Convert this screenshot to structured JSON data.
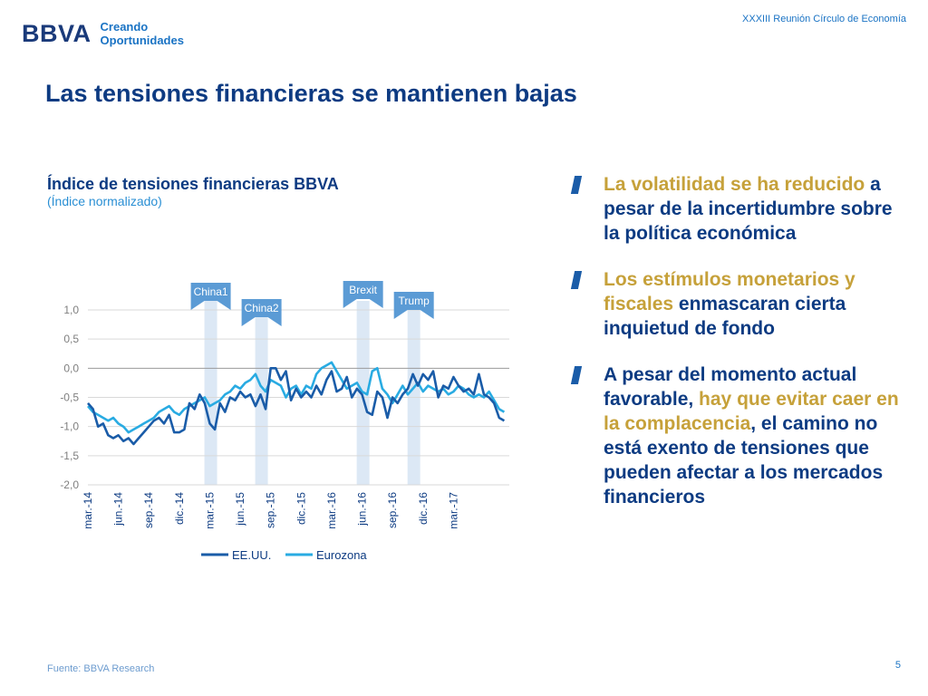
{
  "header": {
    "logo_text": "BBVA",
    "tagline_1": "Creando",
    "tagline_2": "Oportunidades",
    "event": "XXXIII Reunión Círculo de Economía"
  },
  "title": "Las tensiones financieras se mantienen bajas",
  "colors": {
    "usa": "#1a5ca8",
    "euro": "#29abe2",
    "event_band": "#dce8f5",
    "event_label": "#5b9bd5",
    "gold": "#c6a13a",
    "navy": "#0d3b82"
  },
  "chart_data": {
    "type": "line",
    "title": "Índice de tensiones financieras BBVA",
    "subtitle": "(Índice normalizado)",
    "x_tick_labels": [
      "mar.-14",
      "jun.-14",
      "sep.-14",
      "dic.-14",
      "mar.-15",
      "jun.-15",
      "sep.-15",
      "dic.-15",
      "mar.-16",
      "jun.-16",
      "sep.-16",
      "dic.-16",
      "mar.-17"
    ],
    "y_tick_labels": [
      "1,0",
      "0,5",
      "0,0",
      "-0,5",
      "-1,0",
      "-1,5",
      "-2,0"
    ],
    "ylim": [
      -2.0,
      1.0
    ],
    "xlim": [
      0,
      41.5
    ],
    "legend_position": "bottom",
    "events": [
      {
        "label": "China1",
        "x": 12.1
      },
      {
        "label": "China2",
        "x": 17.1
      },
      {
        "label": "Brexit",
        "x": 27.1
      },
      {
        "label": "Trump",
        "x": 32.1
      }
    ],
    "series": [
      {
        "name": "EE.UU.",
        "x": [
          0,
          0.5,
          1,
          1.5,
          2,
          2.5,
          3,
          3.5,
          4,
          4.5,
          5,
          5.5,
          6,
          6.5,
          7,
          7.5,
          8,
          8.5,
          9,
          9.5,
          10,
          10.5,
          11,
          11.5,
          12,
          12.5,
          13,
          13.5,
          14,
          14.5,
          15,
          15.5,
          16,
          16.5,
          17,
          17.5,
          18,
          18.5,
          19,
          19.5,
          20,
          20.5,
          21,
          21.5,
          22,
          22.5,
          23,
          23.5,
          24,
          24.5,
          25,
          25.5,
          26,
          26.5,
          27,
          27.5,
          28,
          28.5,
          29,
          29.5,
          30,
          30.5,
          31,
          31.5,
          32,
          32.5,
          33,
          33.5,
          34,
          34.5,
          35,
          35.5,
          36,
          36.5,
          37,
          37.5,
          38,
          38.5,
          39,
          39.5,
          40,
          40.5,
          41
        ],
        "values": [
          -0.6,
          -0.7,
          -1.0,
          -0.95,
          -1.15,
          -1.2,
          -1.15,
          -1.25,
          -1.2,
          -1.3,
          -1.2,
          -1.1,
          -1.0,
          -0.9,
          -0.85,
          -0.95,
          -0.8,
          -1.1,
          -1.1,
          -1.05,
          -0.6,
          -0.7,
          -0.45,
          -0.6,
          -0.95,
          -1.05,
          -0.6,
          -0.75,
          -0.5,
          -0.55,
          -0.4,
          -0.5,
          -0.45,
          -0.65,
          -0.45,
          -0.7,
          0.0,
          0.0,
          -0.2,
          -0.05,
          -0.55,
          -0.35,
          -0.5,
          -0.4,
          -0.5,
          -0.3,
          -0.45,
          -0.2,
          -0.05,
          -0.4,
          -0.35,
          -0.15,
          -0.5,
          -0.35,
          -0.45,
          -0.75,
          -0.8,
          -0.4,
          -0.5,
          -0.85,
          -0.5,
          -0.6,
          -0.45,
          -0.35,
          -0.1,
          -0.3,
          -0.1,
          -0.2,
          -0.05,
          -0.5,
          -0.3,
          -0.35,
          -0.15,
          -0.3,
          -0.4,
          -0.35,
          -0.45,
          -0.1,
          -0.45,
          -0.5,
          -0.6,
          -0.85,
          -0.9
        ]
      },
      {
        "name": "Eurozona",
        "x": [
          0,
          0.5,
          1,
          1.5,
          2,
          2.5,
          3,
          3.5,
          4,
          4.5,
          5,
          5.5,
          6,
          6.5,
          7,
          7.5,
          8,
          8.5,
          9,
          9.5,
          10,
          10.5,
          11,
          11.5,
          12,
          12.5,
          13,
          13.5,
          14,
          14.5,
          15,
          15.5,
          16,
          16.5,
          17,
          17.5,
          18,
          18.5,
          19,
          19.5,
          20,
          20.5,
          21,
          21.5,
          22,
          22.5,
          23,
          23.5,
          24,
          24.5,
          25,
          25.5,
          26,
          26.5,
          27,
          27.5,
          28,
          28.5,
          29,
          29.5,
          30,
          30.5,
          31,
          31.5,
          32,
          32.5,
          33,
          33.5,
          34,
          34.5,
          35,
          35.5,
          36,
          36.5,
          37,
          37.5,
          38,
          38.5,
          39,
          39.5,
          40,
          40.5,
          41
        ],
        "values": [
          -0.65,
          -0.75,
          -0.8,
          -0.85,
          -0.9,
          -0.85,
          -0.95,
          -1.0,
          -1.1,
          -1.05,
          -1.0,
          -0.95,
          -0.9,
          -0.85,
          -0.75,
          -0.7,
          -0.65,
          -0.75,
          -0.8,
          -0.7,
          -0.65,
          -0.6,
          -0.55,
          -0.5,
          -0.65,
          -0.6,
          -0.55,
          -0.45,
          -0.4,
          -0.3,
          -0.35,
          -0.25,
          -0.2,
          -0.1,
          -0.3,
          -0.4,
          -0.2,
          -0.25,
          -0.3,
          -0.5,
          -0.35,
          -0.3,
          -0.45,
          -0.3,
          -0.35,
          -0.1,
          0.0,
          0.05,
          0.1,
          -0.05,
          -0.2,
          -0.35,
          -0.3,
          -0.25,
          -0.4,
          -0.45,
          -0.05,
          0.0,
          -0.35,
          -0.45,
          -0.6,
          -0.45,
          -0.3,
          -0.45,
          -0.35,
          -0.25,
          -0.4,
          -0.3,
          -0.35,
          -0.4,
          -0.35,
          -0.45,
          -0.4,
          -0.3,
          -0.35,
          -0.45,
          -0.5,
          -0.45,
          -0.5,
          -0.4,
          -0.55,
          -0.7,
          -0.75
        ]
      }
    ]
  },
  "bullets": [
    {
      "parts": [
        {
          "text": "La volatilidad se ha reducido",
          "hl": true
        },
        {
          "text": " a pesar de la incertidumbre sobre la política económica",
          "hl": false
        }
      ]
    },
    {
      "parts": [
        {
          "text": "Los estímulos monetarios y fiscales",
          "hl": true
        },
        {
          "text": " enmascaran cierta inquietud de fondo",
          "hl": false
        }
      ]
    },
    {
      "parts": [
        {
          "text": "A pesar del momento actual favorable, ",
          "hl": false
        },
        {
          "text": "hay que evitar caer en la complacencia",
          "hl": true
        },
        {
          "text": ", el camino no está exento de tensiones que pueden afectar a los mercados financieros",
          "hl": false
        }
      ]
    }
  ],
  "footer": {
    "source": "Fuente: BBVA Research",
    "page": "5"
  }
}
